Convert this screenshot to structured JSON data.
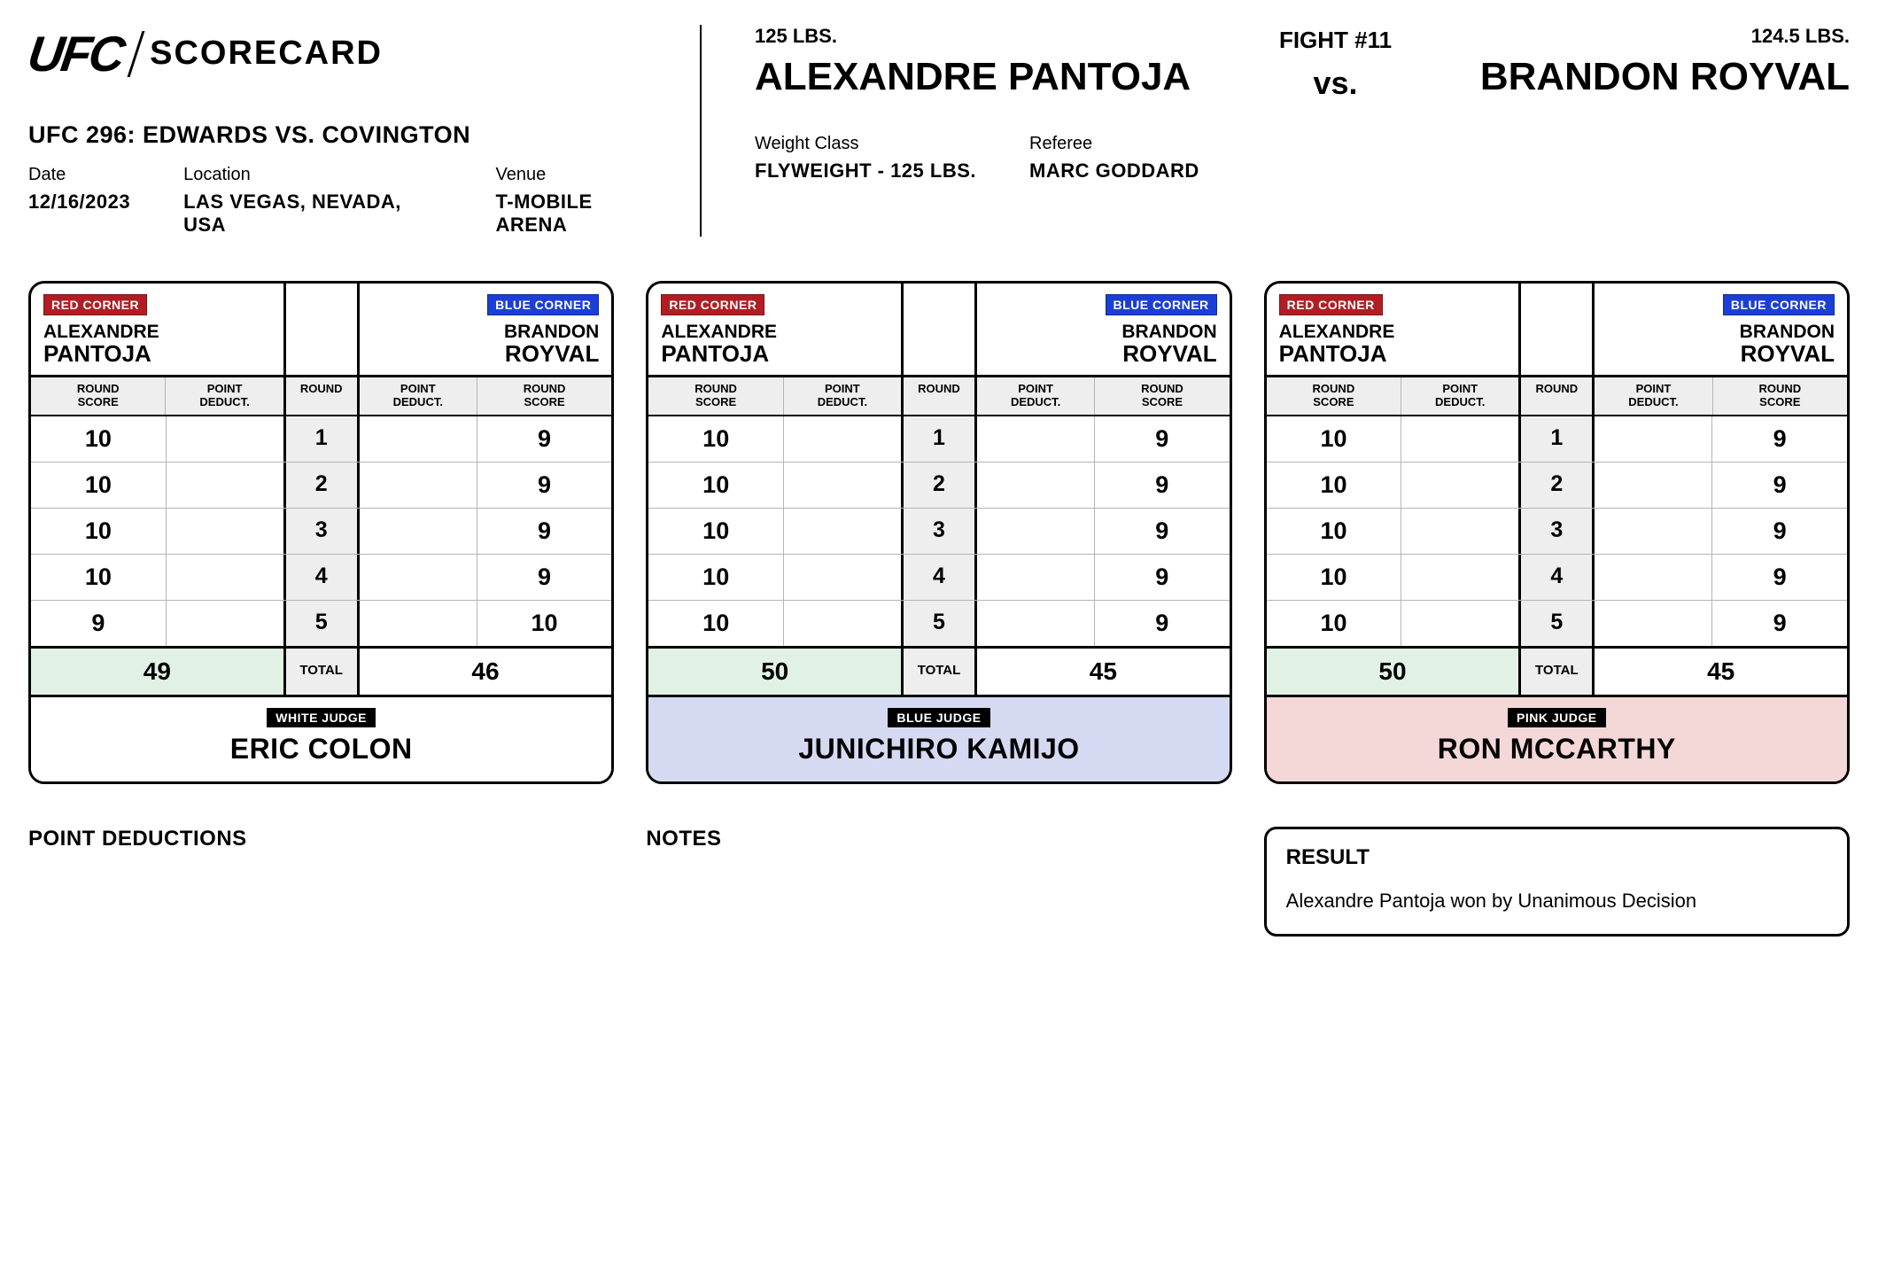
{
  "brand": {
    "logo": "UFC",
    "scorecard_label": "SCORECARD"
  },
  "event": {
    "name": "UFC 296: EDWARDS VS. COVINGTON",
    "date_label": "Date",
    "date": "12/16/2023",
    "location_label": "Location",
    "location": "LAS VEGAS, NEVADA, USA",
    "venue_label": "Venue",
    "venue": "T-MOBILE ARENA"
  },
  "fight": {
    "red_weight": "125 LBS.",
    "red_name": "ALEXANDRE PANTOJA",
    "blue_weight": "124.5 LBS.",
    "blue_name": "BRANDON ROYVAL",
    "number_label": "FIGHT #11",
    "vs": "vs.",
    "weight_class_label": "Weight Class",
    "weight_class": "FLYWEIGHT - 125 LBS.",
    "referee_label": "Referee",
    "referee": "MARC GODDARD"
  },
  "corner_labels": {
    "red": "RED CORNER",
    "blue": "BLUE CORNER"
  },
  "fighter_names": {
    "red_first": "ALEXANDRE",
    "red_last": "PANTOJA",
    "blue_first": "BRANDON",
    "blue_last": "ROYVAL"
  },
  "column_headers": {
    "round_score": "ROUND SCORE",
    "point_deduct": "POINT DEDUCT.",
    "round": "ROUND",
    "total": "TOTAL"
  },
  "judges": [
    {
      "badge": "WHITE JUDGE",
      "name": "ERIC COLON",
      "footer_bg": "#ffffff",
      "rounds": [
        {
          "n": "1",
          "rs": "10",
          "pd": "",
          "pd2": "",
          "rs2": "9"
        },
        {
          "n": "2",
          "rs": "10",
          "pd": "",
          "pd2": "",
          "rs2": "9"
        },
        {
          "n": "3",
          "rs": "10",
          "pd": "",
          "pd2": "",
          "rs2": "9"
        },
        {
          "n": "4",
          "rs": "10",
          "pd": "",
          "pd2": "",
          "rs2": "9"
        },
        {
          "n": "5",
          "rs": "9",
          "pd": "",
          "pd2": "",
          "rs2": "10"
        }
      ],
      "total_red": "49",
      "total_blue": "46",
      "winner": "red"
    },
    {
      "badge": "BLUE JUDGE",
      "name": "JUNICHIRO KAMIJO",
      "footer_bg": "#d5daf2",
      "rounds": [
        {
          "n": "1",
          "rs": "10",
          "pd": "",
          "pd2": "",
          "rs2": "9"
        },
        {
          "n": "2",
          "rs": "10",
          "pd": "",
          "pd2": "",
          "rs2": "9"
        },
        {
          "n": "3",
          "rs": "10",
          "pd": "",
          "pd2": "",
          "rs2": "9"
        },
        {
          "n": "4",
          "rs": "10",
          "pd": "",
          "pd2": "",
          "rs2": "9"
        },
        {
          "n": "5",
          "rs": "10",
          "pd": "",
          "pd2": "",
          "rs2": "9"
        }
      ],
      "total_red": "50",
      "total_blue": "45",
      "winner": "red"
    },
    {
      "badge": "PINK JUDGE",
      "name": "RON MCCARTHY",
      "footer_bg": "#f4d7d7",
      "rounds": [
        {
          "n": "1",
          "rs": "10",
          "pd": "",
          "pd2": "",
          "rs2": "9"
        },
        {
          "n": "2",
          "rs": "10",
          "pd": "",
          "pd2": "",
          "rs2": "9"
        },
        {
          "n": "3",
          "rs": "10",
          "pd": "",
          "pd2": "",
          "rs2": "9"
        },
        {
          "n": "4",
          "rs": "10",
          "pd": "",
          "pd2": "",
          "rs2": "9"
        },
        {
          "n": "5",
          "rs": "10",
          "pd": "",
          "pd2": "",
          "rs2": "9"
        }
      ],
      "total_red": "50",
      "total_blue": "45",
      "winner": "red"
    }
  ],
  "bottom": {
    "deductions_heading": "POINT DEDUCTIONS",
    "notes_heading": "NOTES",
    "result_heading": "RESULT",
    "result_text": "Alexandre Pantoja won by Unanimous Decision"
  },
  "colors": {
    "red_badge": "#b01e23",
    "blue_badge": "#1b3fd6",
    "winner_bg": "#e2f1e5",
    "header_gray": "#eeeeee",
    "border_gray": "#b5b5b5"
  }
}
